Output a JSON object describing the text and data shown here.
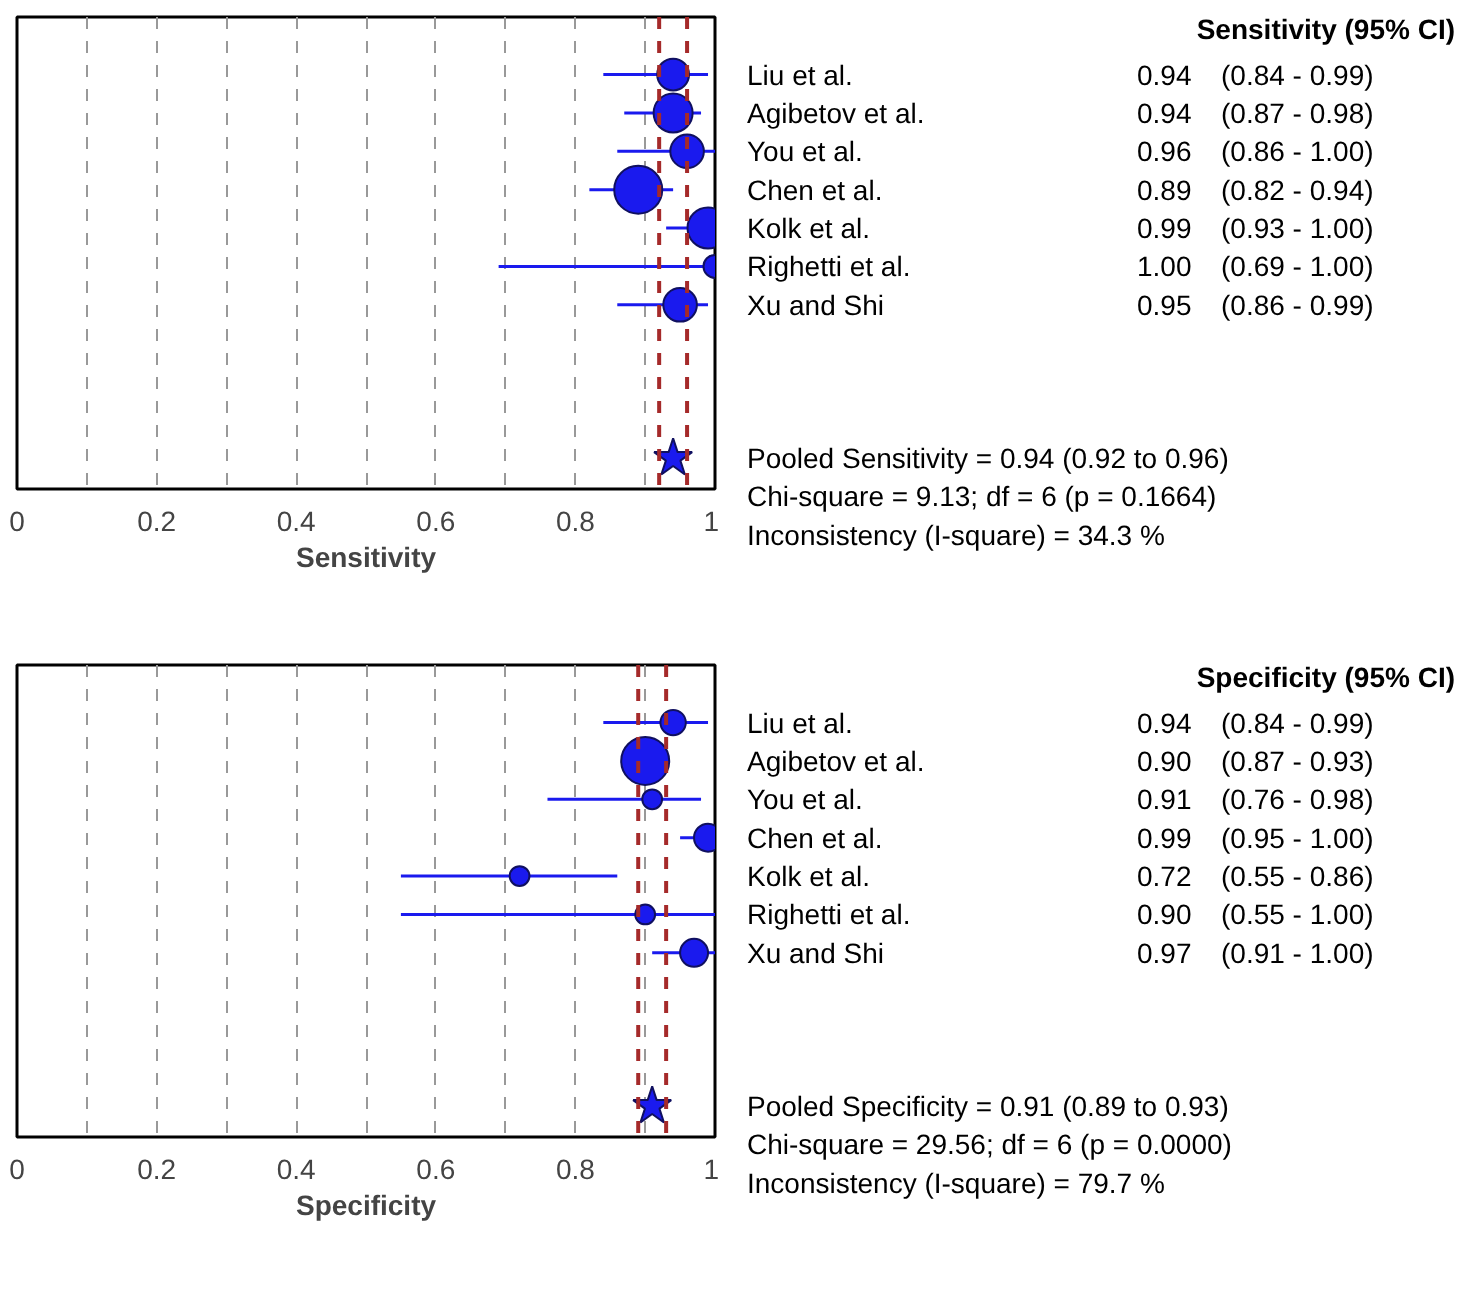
{
  "chart_data": [
    {
      "type": "bubble",
      "orientation": "horizontal",
      "title": "Sensitivity (95% CI)",
      "xlabel": "Sensitivity",
      "categories": [
        "Liu et al.",
        "Agibetov et al.",
        "You et al.",
        "Chen et al.",
        "Kolk et al.",
        "Righetti et al.",
        "Xu and Shi",
        null,
        null,
        null,
        "Pooled Sensitivity = 0.94 (0.92 to 0.96)"
      ],
      "xlim": [
        0,
        1
      ],
      "xticks": [
        0,
        {
          "value": 0.1,
          "label": null
        },
        0.2,
        {
          "value": 0.3,
          "label": null
        },
        0.4,
        {
          "value": 0.5,
          "label": null
        },
        0.6,
        {
          "value": 0.7,
          "label": null
        },
        0.8,
        {
          "value": 0.9,
          "label": null
        },
        1
      ],
      "grid": "x",
      "ref_lines": [
        {
          "axis": "x",
          "value": 0.92,
          "color": "#a52a2a",
          "line_style": "dashed"
        },
        {
          "axis": "x",
          "value": 0.96,
          "color": "#a52a2a",
          "line_style": "dashed"
        }
      ],
      "annotations": [
        "Chi-square = 9.13; df = 6 (p = 0.1664)",
        "Inconsistency (I-square) = 34.3 %"
      ],
      "series": [
        {
          "color": "#1a1aee",
          "values": [
            0.94,
            0.94,
            0.96,
            0.89,
            0.99,
            1.0,
            0.95,
            null,
            null,
            null,
            null
          ],
          "errors": [
            [
              0.84,
              0.99
            ],
            [
              0.87,
              0.98
            ],
            [
              0.86,
              1.0
            ],
            [
              0.82,
              0.94
            ],
            [
              0.93,
              1.0
            ],
            [
              0.69,
              1.0
            ],
            [
              0.86,
              0.99
            ],
            null,
            null,
            null,
            null
          ],
          "sizes": [
            0.44,
            0.66,
            0.49,
            1,
            0.73,
            0.23,
            0.49,
            null,
            null,
            null,
            null
          ],
          "value_labels": [
            "0.94 (0.84 - 0.99)",
            "0.94 (0.87 - 0.98)",
            "0.96 (0.86 - 1.00)",
            "0.89 (0.82 - 0.94)",
            "0.99 (0.93 - 1.00)",
            "1.00 (0.69 - 1.00)",
            "0.95 (0.86 - 0.99)",
            null,
            null,
            null,
            null
          ]
        },
        {
          "type": "scatter",
          "marker": "star",
          "color": "#1a1aee",
          "values": [
            null,
            null,
            null,
            null,
            null,
            null,
            null,
            null,
            null,
            null,
            0.94
          ]
        }
      ]
    },
    {
      "type": "bubble",
      "orientation": "horizontal",
      "title": "Specificity (95% CI)",
      "xlabel": "Specificity",
      "categories": [
        "Liu et al.",
        "Agibetov et al.",
        "You et al.",
        "Chen et al.",
        "Kolk et al.",
        "Righetti et al.",
        "Xu and Shi",
        null,
        null,
        null,
        "Pooled Specificity = 0.91 (0.89 to 0.93)"
      ],
      "xlim": [
        0,
        1
      ],
      "xticks": [
        0,
        {
          "value": 0.1,
          "label": null
        },
        0.2,
        {
          "value": 0.3,
          "label": null
        },
        0.4,
        {
          "value": 0.5,
          "label": null
        },
        0.6,
        {
          "value": 0.7,
          "label": null
        },
        0.8,
        {
          "value": 0.9,
          "label": null
        },
        1
      ],
      "grid": "x",
      "ref_lines": [
        {
          "axis": "x",
          "value": 0.89,
          "color": "#a52a2a",
          "line_style": "dashed"
        },
        {
          "axis": "x",
          "value": 0.93,
          "color": "#a52a2a",
          "line_style": "dashed"
        }
      ],
      "annotations": [
        "Chi-square = 29.56; df = 6 (p = 0.0000)",
        "Inconsistency (I-square) = 79.7 %"
      ],
      "series": [
        {
          "color": "#1a1aee",
          "values": [
            0.94,
            0.9,
            0.91,
            0.99,
            0.72,
            0.9,
            0.97,
            null,
            null,
            null,
            null
          ],
          "errors": [
            [
              0.84,
              0.99
            ],
            [
              0.87,
              0.93
            ],
            [
              0.76,
              0.98
            ],
            [
              0.95,
              1.0
            ],
            [
              0.55,
              0.86
            ],
            [
              0.55,
              1.0
            ],
            [
              0.91,
              1.0
            ],
            null,
            null,
            null,
            null
          ],
          "sizes": [
            0.28,
            1,
            0.17,
            0.34,
            0.17,
            0.17,
            0.34,
            null,
            null,
            null,
            null
          ],
          "value_labels": [
            "0.94 (0.84 - 0.99)",
            "0.90 (0.87 - 0.93)",
            "0.91 (0.76 - 0.98)",
            "0.99 (0.95 - 1.00)",
            "0.72 (0.55 - 0.86)",
            "0.90 (0.55 - 1.00)",
            "0.97 (0.91 - 1.00)",
            null,
            null,
            null,
            null
          ]
        },
        {
          "type": "scatter",
          "marker": "star",
          "color": "#1a1aee",
          "values": [
            null,
            null,
            null,
            null,
            null,
            null,
            null,
            null,
            null,
            null,
            0.91
          ]
        }
      ]
    }
  ]
}
